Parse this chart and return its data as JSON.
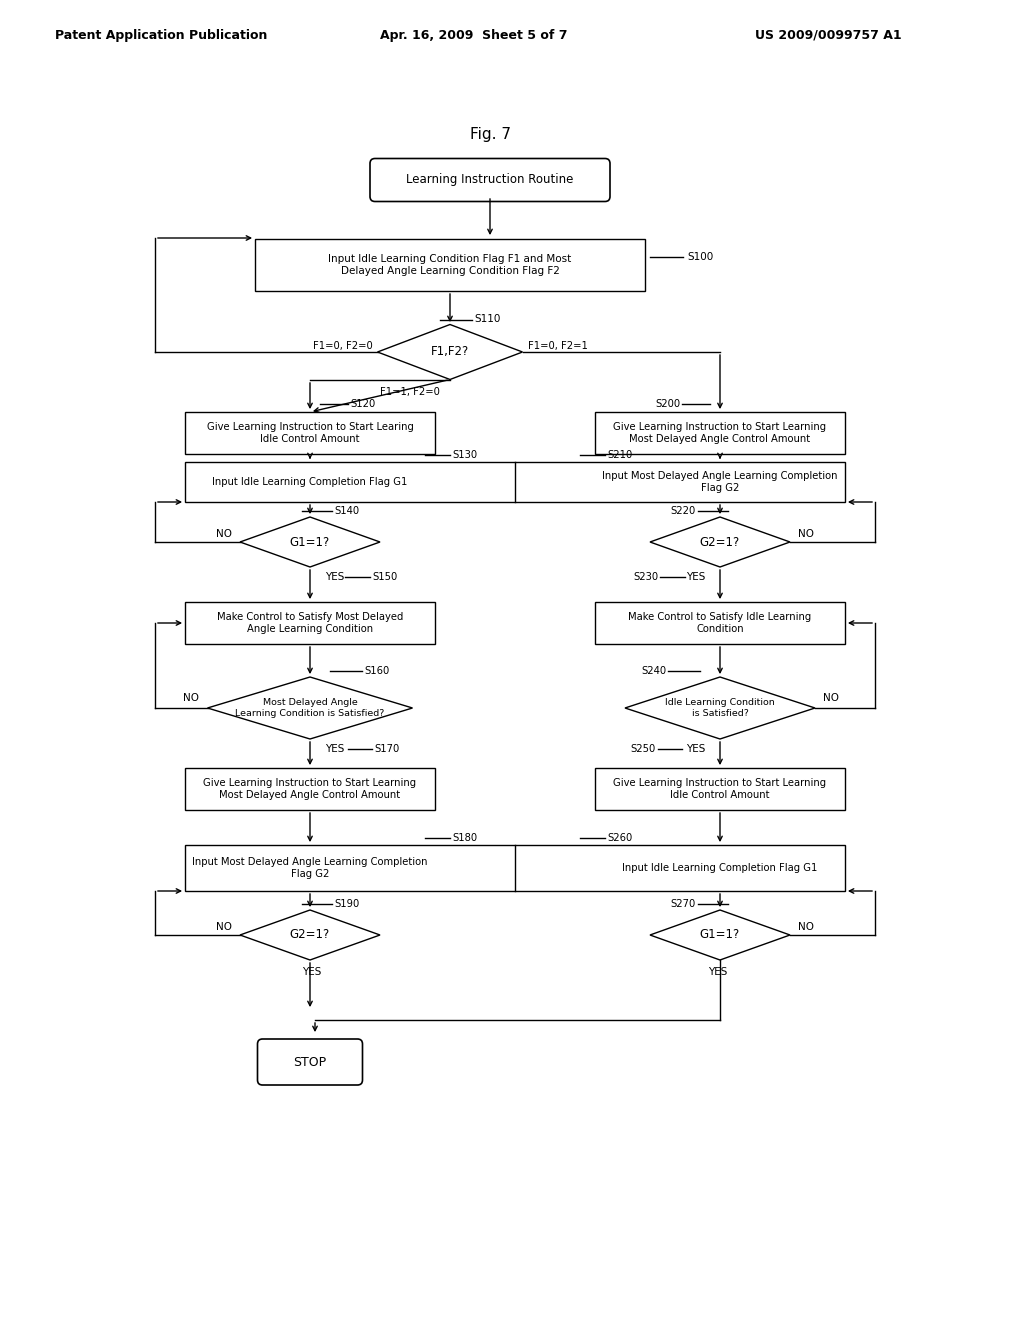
{
  "bg_color": "#ffffff",
  "header_left": "Patent Application Publication",
  "header_mid": "Apr. 16, 2009  Sheet 5 of 7",
  "header_right": "US 2009/0099757 A1",
  "fig_label": "Fig. 7",
  "title_node": "Learning Instruction Routine",
  "s100_text": "Input Idle Learning Condition Flag F1 and Most\nDelayed Angle Learning Condition Flag F2",
  "s100_label": "S100",
  "s110_text": "F1,F2?",
  "s110_label": "S110",
  "s110_left": "F1=0, F2=0",
  "s110_right": "F1=0, F2=1",
  "s110_bottom": "F1=1, F2=0",
  "s120_text": "Give Learning Instruction to Start Learing\nIdle Control Amount",
  "s120_label": "S120",
  "s200_text": "Give Learning Instruction to Start Learning\nMost Delayed Angle Control Amount",
  "s200_label": "S200",
  "s130_text": "Input Idle Learning Completion Flag G1",
  "s130_label": "S130",
  "s210_text": "Input Most Delayed Angle Learning Completion\nFlag G2",
  "s210_label": "S210",
  "s140_text": "G1=1?",
  "s140_label": "S140",
  "s220_text": "G2=1?",
  "s220_label": "S220",
  "s150_text": "Make Control to Satisfy Most Delayed\nAngle Learning Condition",
  "s150_label": "S150",
  "s230_text": "Make Control to Satisfy Idle Learning\nCondition",
  "s230_label": "S230",
  "s160_text": "Most Delayed Angle\nLearning Condition is Satisfied?",
  "s160_label": "S160",
  "s240_text": "Idle Learning Condition\nis Satisfied?",
  "s240_label": "S240",
  "s170_text": "Give Learning Instruction to Start Learning\nMost Delayed Angle Control Amount",
  "s170_label": "S170",
  "s250_text": "Give Learning Instruction to Start Learning\nIdle Control Amount",
  "s250_label": "S250",
  "s180_text": "Input Most Delayed Angle Learning Completion\nFlag G2",
  "s180_label": "S180",
  "s260_text": "Input Idle Learning Completion Flag G1",
  "s260_label": "S260",
  "s190_text": "G2=1?",
  "s190_label": "S190",
  "s270_text": "G1=1?",
  "s270_label": "S270",
  "stop_text": "STOP"
}
